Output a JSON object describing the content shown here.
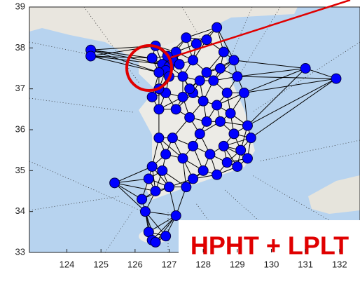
{
  "chart_data": {
    "type": "scatter",
    "annotation": "HPHT + LPLT",
    "color": "#0000ff",
    "xlim": [
      122.9,
      132.6
    ],
    "ylim": [
      33,
      39
    ],
    "xticks": [
      124,
      125,
      126,
      127,
      128,
      129,
      130,
      131,
      132
    ],
    "yticks": [
      33,
      34,
      35,
      36,
      37,
      38,
      39
    ],
    "x": [
      126.8,
      127.0,
      126.9,
      127.1,
      127.2,
      126.95,
      127.3,
      126.7,
      127.0,
      127.4,
      127.5,
      127.8,
      128.1,
      128.4,
      128.6,
      128.9,
      128.5,
      128.1,
      127.7,
      127.9,
      128.3,
      129.0,
      129.2,
      128.7,
      128.4,
      128.8,
      129.3,
      129.4,
      129.1,
      129.3,
      129.0,
      128.7,
      128.6,
      128.2,
      128.0,
      128.4,
      127.7,
      127.5,
      127.0,
      126.6,
      126.4,
      126.5,
      126.8,
      126.9,
      126.7,
      127.1,
      127.4,
      127.7,
      127.9,
      128.1,
      127.6,
      127.2,
      126.7,
      126.5,
      126.9,
      127.4,
      127.7,
      128.0,
      126.7,
      126.2,
      126.3,
      126.4,
      126.5,
      126.6,
      126.9,
      127.2,
      124.7,
      124.7,
      125.4,
      131.0,
      131.9,
      126.6,
      126.5,
      127.6,
      128.5,
      128.9
    ],
    "y": [
      37.6,
      37.55,
      37.45,
      37.7,
      37.9,
      37.8,
      37.6,
      37.4,
      37.3,
      37.3,
      38.25,
      38.1,
      38.2,
      38.5,
      37.9,
      37.7,
      37.5,
      37.4,
      37.7,
      37.2,
      37.2,
      37.3,
      36.9,
      36.9,
      36.6,
      36.4,
      36.1,
      35.8,
      35.5,
      35.3,
      35.1,
      35.2,
      35.6,
      35.4,
      35.0,
      34.9,
      34.8,
      34.6,
      34.6,
      34.5,
      34.8,
      35.1,
      35.0,
      35.4,
      35.8,
      35.8,
      35.3,
      35.6,
      35.9,
      36.2,
      36.3,
      36.5,
      36.5,
      36.8,
      36.9,
      36.8,
      36.9,
      36.7,
      37.0,
      34.3,
      34.0,
      33.5,
      33.3,
      33.25,
      33.4,
      33.9,
      37.95,
      37.8,
      34.7,
      37.5,
      37.25,
      38.05,
      37.75,
      37.0,
      36.2,
      35.9
    ]
  }
}
